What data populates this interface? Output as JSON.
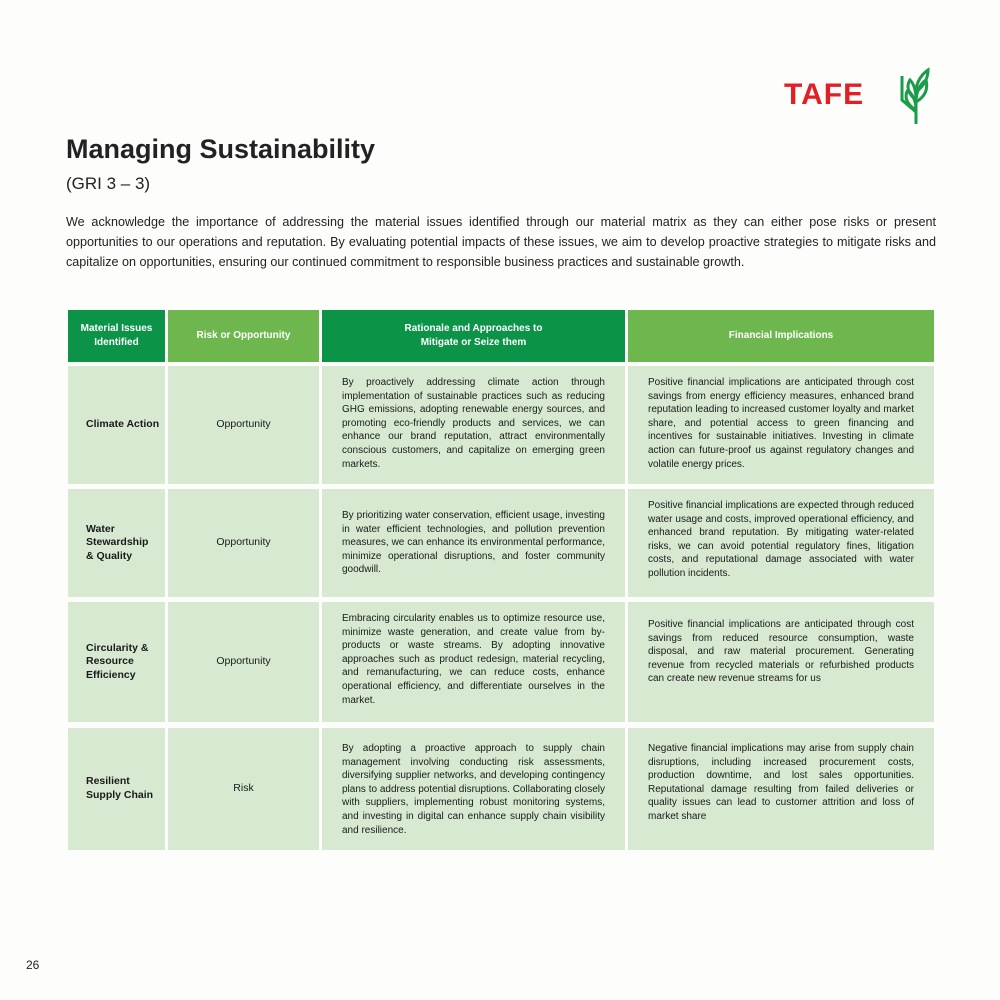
{
  "logo": {
    "text": "TAFE",
    "brand_red": "#e31e24",
    "brand_green": "#1a9c48"
  },
  "title": "Managing Sustainability",
  "subtitle": "(GRI 3 – 3)",
  "intro": "We acknowledge the importance of addressing the material issues identified through our material matrix as they can either pose risks or present opportunities to our operations and reputation. By evaluating potential impacts of these issues, we aim to develop proactive strategies to mitigate risks and capitalize on opportunities, ensuring our continued commitment to responsible business practices and sustainable growth.",
  "table": {
    "headers": [
      "Material Issues Identified",
      "Risk or Opportunity",
      "Rationale and Approaches to Mitigate or Seize them",
      "Financial Implications"
    ],
    "rows": [
      {
        "issue": "Climate Action",
        "type": "Opportunity",
        "rationale": "By proactively addressing climate action through implementation of sustainable practices such as reducing GHG emissions, adopting renewable energy sources, and promoting eco-friendly products and services, we can enhance our brand reputation, attract environmentally conscious customers, and capitalize on emerging green markets.",
        "financial": "Positive financial implications are anticipated through cost savings from energy efficiency measures, enhanced brand reputation leading to increased customer loyalty and market share, and potential access to green financing and incentives for sustainable initiatives. Investing in climate action can future-proof us against regulatory changes and volatile energy prices."
      },
      {
        "issue": "Water Stewardship & Quality",
        "type": "Opportunity",
        "rationale": "By prioritizing water conservation, efficient usage, investing in water efficient technologies, and pollution prevention measures, we can enhance its environmental performance, minimize operational disruptions, and foster community goodwill.",
        "financial": "Positive financial implications are expected through reduced water usage and costs, improved operational efficiency, and enhanced brand reputation. By mitigating water-related risks, we can avoid potential regulatory fines, litigation costs, and reputational damage associated with water pollution incidents."
      },
      {
        "issue": "Circularity & Resource Efficiency",
        "type": "Opportunity",
        "rationale": "Embracing circularity enables us to optimize resource use, minimize waste generation, and create value from by-products or waste streams. By adopting innovative approaches such as product redesign, material recycling, and remanufacturing, we can reduce costs, enhance operational efficiency, and differentiate ourselves in the market.",
        "financial": "Positive financial implications are anticipated through cost savings from reduced resource consumption, waste disposal, and raw material procurement. Generating revenue from recycled materials or refurbished products can create new revenue streams for us"
      },
      {
        "issue": "Resilient Supply Chain",
        "type": "Risk",
        "rationale": "By adopting a proactive approach to supply chain management involving conducting risk assessments, diversifying supplier networks, and developing contingency plans to address potential disruptions. Collaborating closely with suppliers, implementing robust monitoring systems, and investing in digital can enhance supply chain visibility and resilience.",
        "financial": "Negative financial implications may arise from supply chain disruptions, including increased procurement costs, production downtime, and lost sales opportunities. Reputational damage resulting from failed deliveries or quality issues can lead to customer attrition and loss of market share"
      }
    ]
  },
  "page_number": "26"
}
